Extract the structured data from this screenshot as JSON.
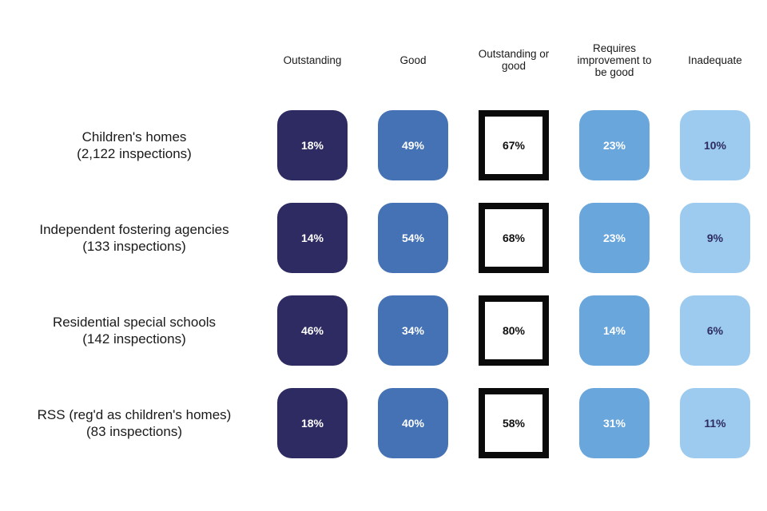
{
  "chart_data": {
    "type": "table",
    "title": "",
    "description_visible": false,
    "columns": [
      {
        "label": "Outstanding",
        "style": "filled",
        "color": "#2e2b62",
        "text_color": "#ffffff"
      },
      {
        "label": "Good",
        "style": "filled",
        "color": "#4472b4",
        "text_color": "#ffffff"
      },
      {
        "label": "Outstanding or good",
        "style": "outlined",
        "fill": "#ffffff",
        "border_color": "#0a0a0a",
        "text_color": "#111111"
      },
      {
        "label": "Requires improvement to be good",
        "style": "filled",
        "color": "#69a6dc",
        "text_color": "#ffffff"
      },
      {
        "label": "Inadequate",
        "style": "filled",
        "color": "#9ccbef",
        "text_color": "#2e2b62"
      }
    ],
    "rows": [
      {
        "label": "Children's homes",
        "sublabel": "(2,122 inspections)",
        "values": [
          18,
          49,
          67,
          23,
          10
        ],
        "cells": [
          "18%",
          "49%",
          "67%",
          "23%",
          "10%"
        ]
      },
      {
        "label": "Independent fostering agencies",
        "sublabel": "(133 inspections)",
        "values": [
          14,
          54,
          68,
          23,
          9
        ],
        "cells": [
          "14%",
          "54%",
          "68%",
          "23%",
          "9%"
        ]
      },
      {
        "label": "Residential special schools",
        "sublabel": "(142 inspections)",
        "values": [
          46,
          34,
          80,
          14,
          6
        ],
        "cells": [
          "46%",
          "34%",
          "80%",
          "14%",
          "6%"
        ]
      },
      {
        "label": "RSS (reg'd as children's homes)",
        "sublabel": "(83 inspections)",
        "values": [
          18,
          40,
          58,
          31,
          11
        ],
        "cells": [
          "18%",
          "40%",
          "58%",
          "31%",
          "11%"
        ]
      }
    ]
  }
}
